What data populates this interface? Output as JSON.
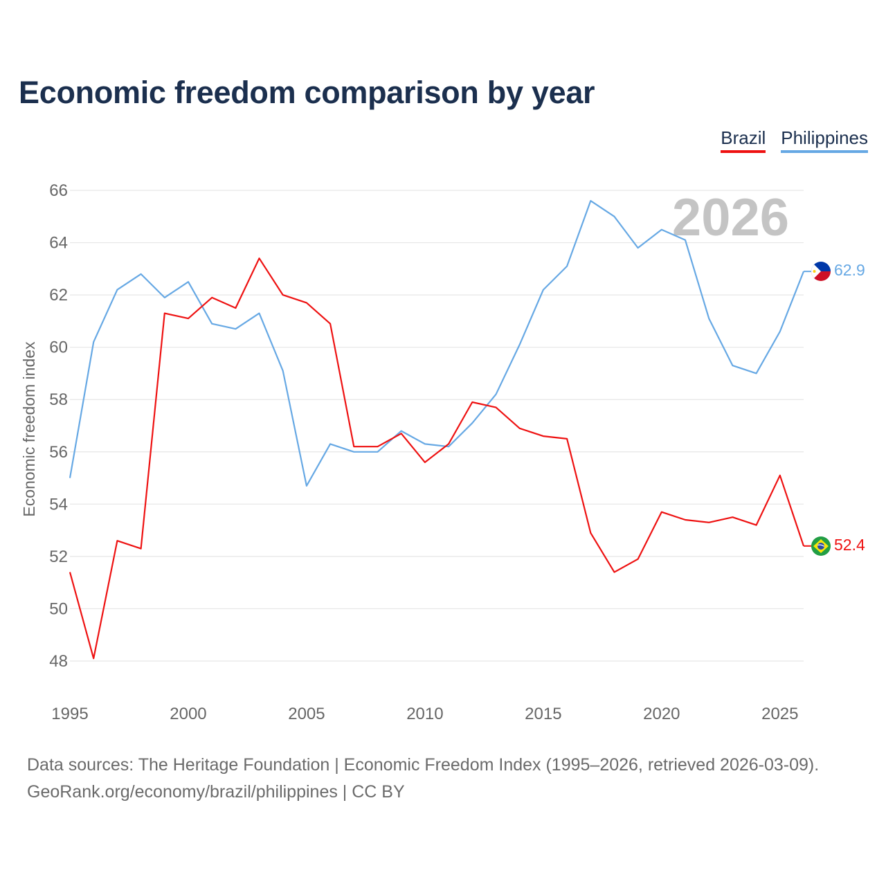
{
  "page": {
    "title": "Economic freedom comparison by year",
    "sources_line1": "Data sources: The Heritage Foundation | Economic Freedom Index (1995–2026, retrieved 2026-03-09).",
    "sources_line2": "GeoRank.org/economy/brazil/philippines | CC BY"
  },
  "legend": {
    "brazil": "Brazil",
    "philippines": "Philippines"
  },
  "chart_data": {
    "type": "line",
    "title": "Economic freedom comparison by year",
    "xlabel": "",
    "ylabel": "Economic freedom index",
    "watermark_year": "2026",
    "xlim": [
      1995,
      2026
    ],
    "ylim": [
      47,
      67
    ],
    "x_ticks": [
      1995,
      2000,
      2005,
      2010,
      2015,
      2020,
      2025
    ],
    "y_ticks": [
      48,
      50,
      52,
      54,
      56,
      58,
      60,
      62,
      64,
      66
    ],
    "grid": true,
    "legend_position": "top-right",
    "x": [
      1995,
      1996,
      1997,
      1998,
      1999,
      2000,
      2001,
      2002,
      2003,
      2004,
      2005,
      2006,
      2007,
      2008,
      2009,
      2010,
      2011,
      2012,
      2013,
      2014,
      2015,
      2016,
      2017,
      2018,
      2019,
      2020,
      2021,
      2022,
      2023,
      2024,
      2025,
      2026
    ],
    "series": [
      {
        "name": "Brazil",
        "color": "#ee1111",
        "end_label": "52.4",
        "flag": "brazil-flag-icon",
        "values": [
          51.4,
          48.1,
          52.6,
          52.3,
          61.3,
          61.1,
          61.9,
          61.5,
          63.4,
          62.0,
          61.7,
          60.9,
          56.2,
          56.2,
          56.7,
          55.6,
          56.3,
          57.9,
          57.7,
          56.9,
          56.6,
          56.5,
          52.9,
          51.4,
          51.9,
          53.7,
          53.4,
          53.3,
          53.5,
          53.2,
          55.1,
          52.4
        ]
      },
      {
        "name": "Philippines",
        "color": "#66a8e4",
        "end_label": "62.9",
        "flag": "philippines-flag-icon",
        "values": [
          55.0,
          60.2,
          62.2,
          62.8,
          61.9,
          62.5,
          60.9,
          60.7,
          61.3,
          59.1,
          54.7,
          56.3,
          56.0,
          56.0,
          56.8,
          56.3,
          56.2,
          57.1,
          58.2,
          60.1,
          62.2,
          63.1,
          65.6,
          65.0,
          63.8,
          64.5,
          64.1,
          61.1,
          59.3,
          59.0,
          60.6,
          62.9
        ]
      }
    ]
  }
}
